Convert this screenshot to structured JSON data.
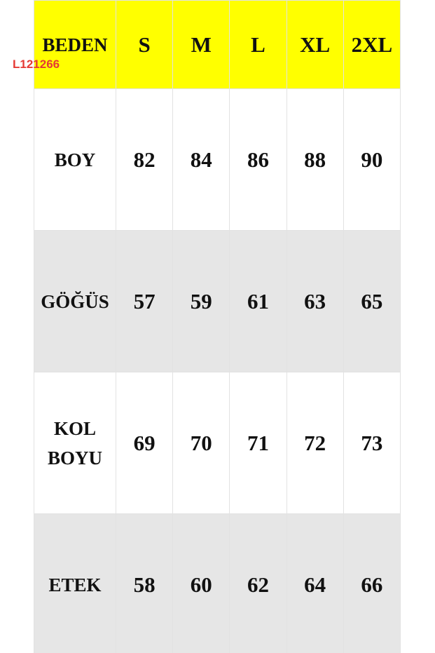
{
  "label": "L121266",
  "table": {
    "header": [
      "BEDEN",
      "S",
      "M",
      "L",
      "XL",
      "2XL"
    ],
    "rows": [
      [
        "BOY",
        82,
        84,
        86,
        88,
        90
      ],
      [
        "GÖĞÜS",
        57,
        59,
        61,
        63,
        65
      ],
      [
        "KOL BOYU",
        69,
        70,
        71,
        72,
        73
      ],
      [
        "ETEK",
        58,
        60,
        62,
        64,
        66
      ]
    ]
  }
}
